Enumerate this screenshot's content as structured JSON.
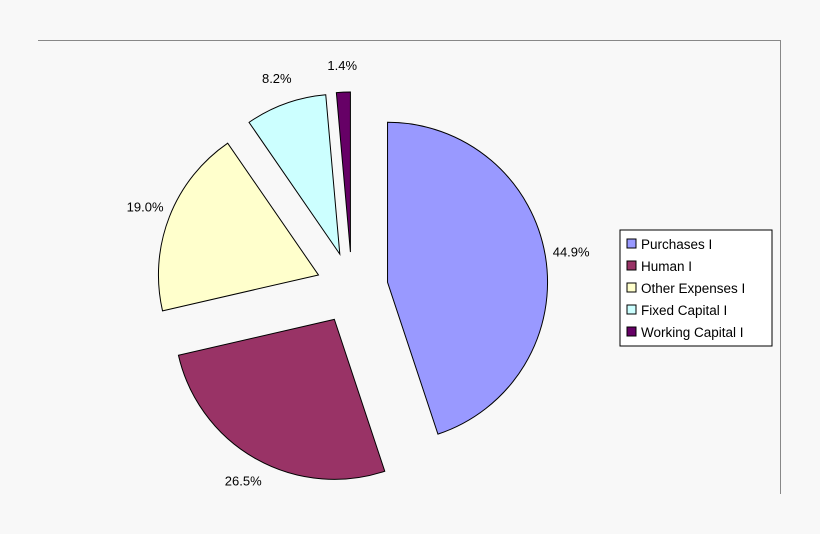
{
  "chart_data": {
    "type": "pie",
    "title": "",
    "legend_position": "right",
    "exploded": true,
    "categories": [
      "Purchases I",
      "Human I",
      "Other Expenses I",
      "Fixed Capital I",
      "Working Capital I"
    ],
    "values": [
      44.9,
      26.5,
      19.0,
      8.2,
      1.4
    ],
    "labels": [
      "44.9%",
      "26.5%",
      "19.0%",
      "8.2%",
      "1.4%"
    ],
    "colors": [
      "#9999ff",
      "#993366",
      "#ffffcc",
      "#ccffff",
      "#660066"
    ]
  }
}
